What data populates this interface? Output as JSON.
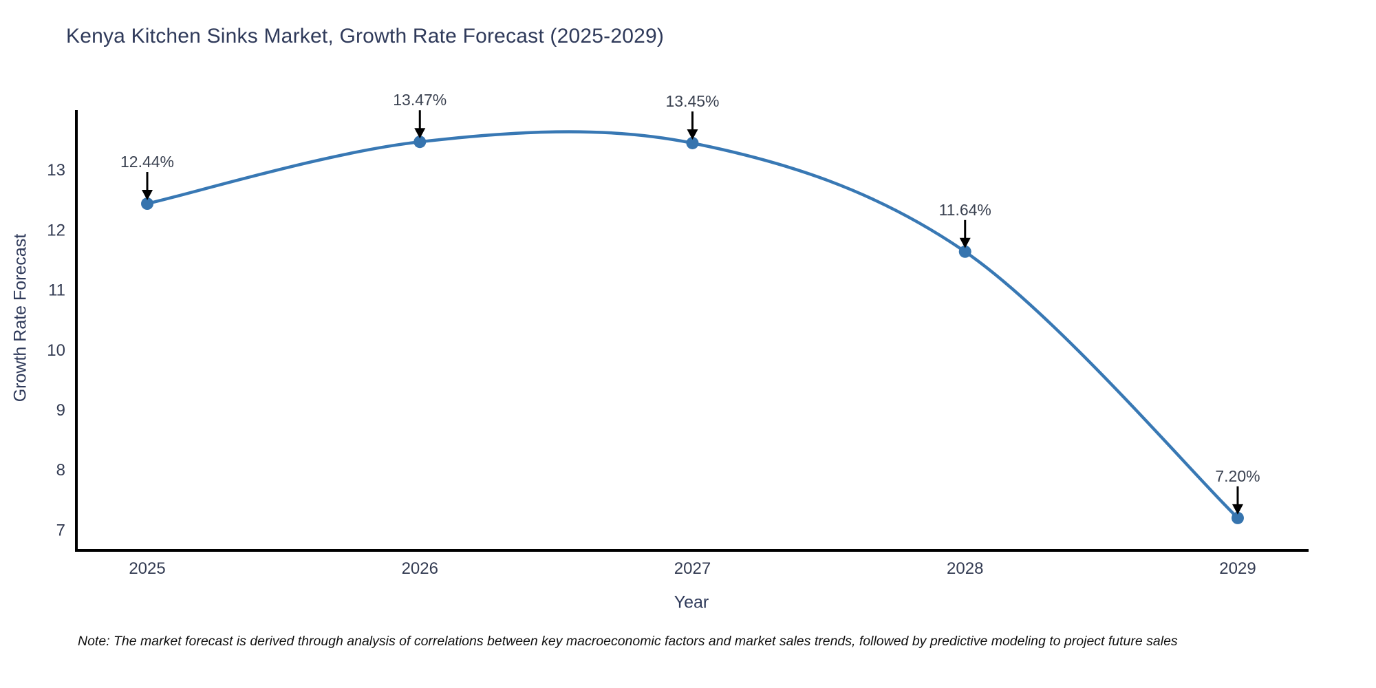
{
  "note": "Note: The market forecast is derived through analysis of correlations between key macroeconomic factors and market sales trends, followed by predictive modeling to project future sales",
  "chart_data": {
    "type": "line",
    "title": "Kenya Kitchen Sinks Market, Growth Rate Forecast (2025-2029)",
    "xlabel": "Year",
    "ylabel": "Growth Rate Forecast",
    "x": [
      2025,
      2026,
      2027,
      2028,
      2029
    ],
    "values": [
      12.44,
      13.47,
      13.45,
      11.64,
      7.2
    ],
    "point_labels": [
      "12.44%",
      "13.47%",
      "13.45%",
      "11.64%",
      "7.20%"
    ],
    "yticks": [
      7,
      8,
      9,
      10,
      11,
      12,
      13
    ],
    "xlim": [
      2024.74,
      2029.26
    ],
    "ylim": [
      6.66,
      14.0
    ],
    "grid": false,
    "legend_position": "none",
    "smooth_spline": true,
    "line_color": "#3878b4",
    "marker_color": "#3674ae",
    "axis_color": "#000000",
    "tick_text_color": "#333b52",
    "annotation_text_color": "#3a4150",
    "annotation_arrow_color": "#000000",
    "background_color": "#ffffff"
  }
}
